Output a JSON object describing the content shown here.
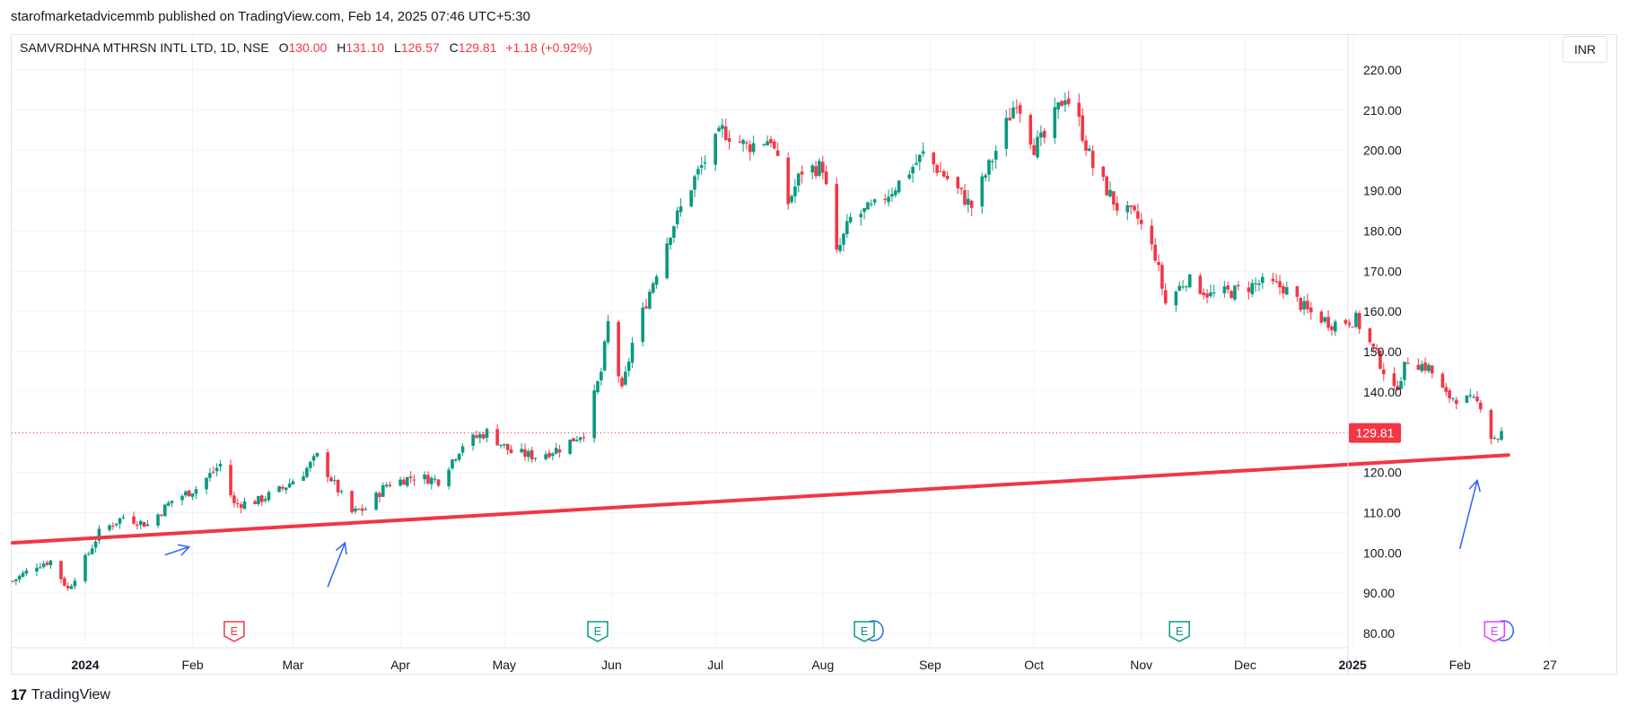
{
  "header": {
    "caption": "starofmarketadvicemmb published on TradingView.com, Feb 14, 2025 07:46 UTC+5:30"
  },
  "legend": {
    "symbol": "SAMVRDHNA MTHRSN INTL LTD, 1D, NSE",
    "o_label": "O",
    "o_value": "130.00",
    "h_label": "H",
    "h_value": "131.10",
    "l_label": "L",
    "l_value": "126.57",
    "c_label": "C",
    "c_value": "129.81",
    "change": "+1.18 (+0.92%)"
  },
  "currency": "INR",
  "footer": {
    "brand": "TradingView",
    "mark": "17"
  },
  "colors": {
    "up": "#089981",
    "down": "#f23645",
    "grid": "#f0f3fa",
    "trendline": "#f23645",
    "arrow": "#2962ff",
    "earnings_red": "#f23645",
    "earnings_green": "#089981",
    "earnings_pink": "#e040fb",
    "dividend_blue": "#2962ff"
  },
  "chart_data": {
    "type": "candlestick",
    "symbol": "SAMVRDHNA MTHRSN INTL LTD",
    "interval": "1D",
    "exchange": "NSE",
    "ylim": [
      76,
      224
    ],
    "yticks": [
      "80.00",
      "90.00",
      "100.00",
      "110.00",
      "120.00",
      "130.00",
      "140.00",
      "150.00",
      "160.00",
      "170.00",
      "180.00",
      "190.00",
      "200.00",
      "210.00",
      "220.00"
    ],
    "grid": true,
    "last_price": "129.81",
    "xticks": [
      {
        "label": "2024",
        "date": "2024-01-01",
        "bold": true
      },
      {
        "label": "Feb",
        "date": "2024-02-01",
        "bold": false
      },
      {
        "label": "Mar",
        "date": "2024-03-01",
        "bold": false
      },
      {
        "label": "Apr",
        "date": "2024-04-01",
        "bold": false
      },
      {
        "label": "May",
        "date": "2024-05-01",
        "bold": false
      },
      {
        "label": "Jun",
        "date": "2024-06-01",
        "bold": false
      },
      {
        "label": "Jul",
        "date": "2024-07-01",
        "bold": false
      },
      {
        "label": "Aug",
        "date": "2024-08-01",
        "bold": false
      },
      {
        "label": "Sep",
        "date": "2024-09-01",
        "bold": false
      },
      {
        "label": "Oct",
        "date": "2024-10-01",
        "bold": false
      },
      {
        "label": "Nov",
        "date": "2024-11-01",
        "bold": false
      },
      {
        "label": "Dec",
        "date": "2024-12-01",
        "bold": false
      },
      {
        "label": "2025",
        "date": "2025-01-01",
        "bold": true
      },
      {
        "label": "Feb",
        "date": "2025-02-01",
        "bold": false
      },
      {
        "label": "27",
        "date": "2025-02-27",
        "bold": false
      }
    ],
    "price_path": [
      [
        "2023-12-11",
        93
      ],
      [
        "2023-12-18",
        97
      ],
      [
        "2023-12-22",
        98
      ],
      [
        "2023-12-27",
        91
      ],
      [
        "2024-01-02",
        100
      ],
      [
        "2024-01-05",
        105
      ],
      [
        "2024-01-12",
        109
      ],
      [
        "2024-01-19",
        107
      ],
      [
        "2024-01-26",
        113
      ],
      [
        "2024-02-02",
        116
      ],
      [
        "2024-02-09",
        122
      ],
      [
        "2024-02-13",
        112
      ],
      [
        "2024-02-20",
        113
      ],
      [
        "2024-02-27",
        116
      ],
      [
        "2024-03-04",
        120
      ],
      [
        "2024-03-08",
        124
      ],
      [
        "2024-03-13",
        117
      ],
      [
        "2024-03-18",
        110
      ],
      [
        "2024-03-22",
        111
      ],
      [
        "2024-03-28",
        117
      ],
      [
        "2024-04-05",
        119
      ],
      [
        "2024-04-12",
        118
      ],
      [
        "2024-04-19",
        127
      ],
      [
        "2024-04-26",
        130
      ],
      [
        "2024-05-03",
        125
      ],
      [
        "2024-05-10",
        124
      ],
      [
        "2024-05-17",
        126
      ],
      [
        "2024-05-24",
        130
      ],
      [
        "2024-05-29",
        145
      ],
      [
        "2024-05-31",
        157
      ],
      [
        "2024-06-04",
        140
      ],
      [
        "2024-06-07",
        152
      ],
      [
        "2024-06-12",
        165
      ],
      [
        "2024-06-18",
        180
      ],
      [
        "2024-06-25",
        193
      ],
      [
        "2024-07-03",
        205
      ],
      [
        "2024-07-10",
        201
      ],
      [
        "2024-07-17",
        203
      ],
      [
        "2024-07-22",
        187
      ],
      [
        "2024-07-26",
        195
      ],
      [
        "2024-08-01",
        196
      ],
      [
        "2024-08-05",
        174
      ],
      [
        "2024-08-09",
        183
      ],
      [
        "2024-08-16",
        186
      ],
      [
        "2024-08-23",
        192
      ],
      [
        "2024-08-30",
        199
      ],
      [
        "2024-09-06",
        193
      ],
      [
        "2024-09-13",
        186
      ],
      [
        "2024-09-20",
        200
      ],
      [
        "2024-09-26",
        213
      ],
      [
        "2024-10-01",
        201
      ],
      [
        "2024-10-04",
        203
      ],
      [
        "2024-10-10",
        214
      ],
      [
        "2024-10-14",
        207
      ],
      [
        "2024-10-18",
        196
      ],
      [
        "2024-10-25",
        186
      ],
      [
        "2024-10-31",
        183
      ],
      [
        "2024-11-05",
        174
      ],
      [
        "2024-11-08",
        162
      ],
      [
        "2024-11-14",
        168
      ],
      [
        "2024-11-21",
        164
      ],
      [
        "2024-11-28",
        165
      ],
      [
        "2024-12-05",
        167
      ],
      [
        "2024-12-12",
        166
      ],
      [
        "2024-12-19",
        160
      ],
      [
        "2024-12-26",
        157
      ],
      [
        "2025-01-02",
        158
      ],
      [
        "2025-01-08",
        149
      ],
      [
        "2025-01-13",
        140
      ],
      [
        "2025-01-17",
        148
      ],
      [
        "2025-01-23",
        146
      ],
      [
        "2025-01-28",
        139
      ],
      [
        "2025-02-03",
        138
      ],
      [
        "2025-02-07",
        137
      ],
      [
        "2025-02-10",
        129
      ],
      [
        "2025-02-12",
        128.6
      ],
      [
        "2025-02-13",
        129.81
      ]
    ],
    "trendline": {
      "start": [
        "2023-12-11",
        102.5
      ],
      "end": [
        "2025-02-15",
        124.3
      ]
    },
    "arrows": [
      {
        "from": [
          "2024-01-24",
          99.5
        ],
        "to": [
          "2024-01-31",
          101.5
        ]
      },
      {
        "from": [
          "2024-03-11",
          91.5
        ],
        "to": [
          "2024-03-16",
          102.5
        ]
      },
      {
        "from": [
          "2025-02-01",
          101
        ],
        "to": [
          "2025-02-06",
          118
        ]
      }
    ],
    "events": [
      {
        "date": "2024-02-13",
        "type": "earnings",
        "color": "red",
        "label": "E"
      },
      {
        "date": "2024-05-28",
        "type": "earnings",
        "color": "green",
        "label": "E"
      },
      {
        "date": "2024-08-13",
        "type": "earnings",
        "color": "green",
        "label": "E",
        "dividend": true
      },
      {
        "date": "2024-11-12",
        "type": "earnings",
        "color": "green",
        "label": "E"
      },
      {
        "date": "2025-02-11",
        "type": "earnings",
        "color": "pink",
        "label": "E",
        "dividend": true
      }
    ]
  }
}
